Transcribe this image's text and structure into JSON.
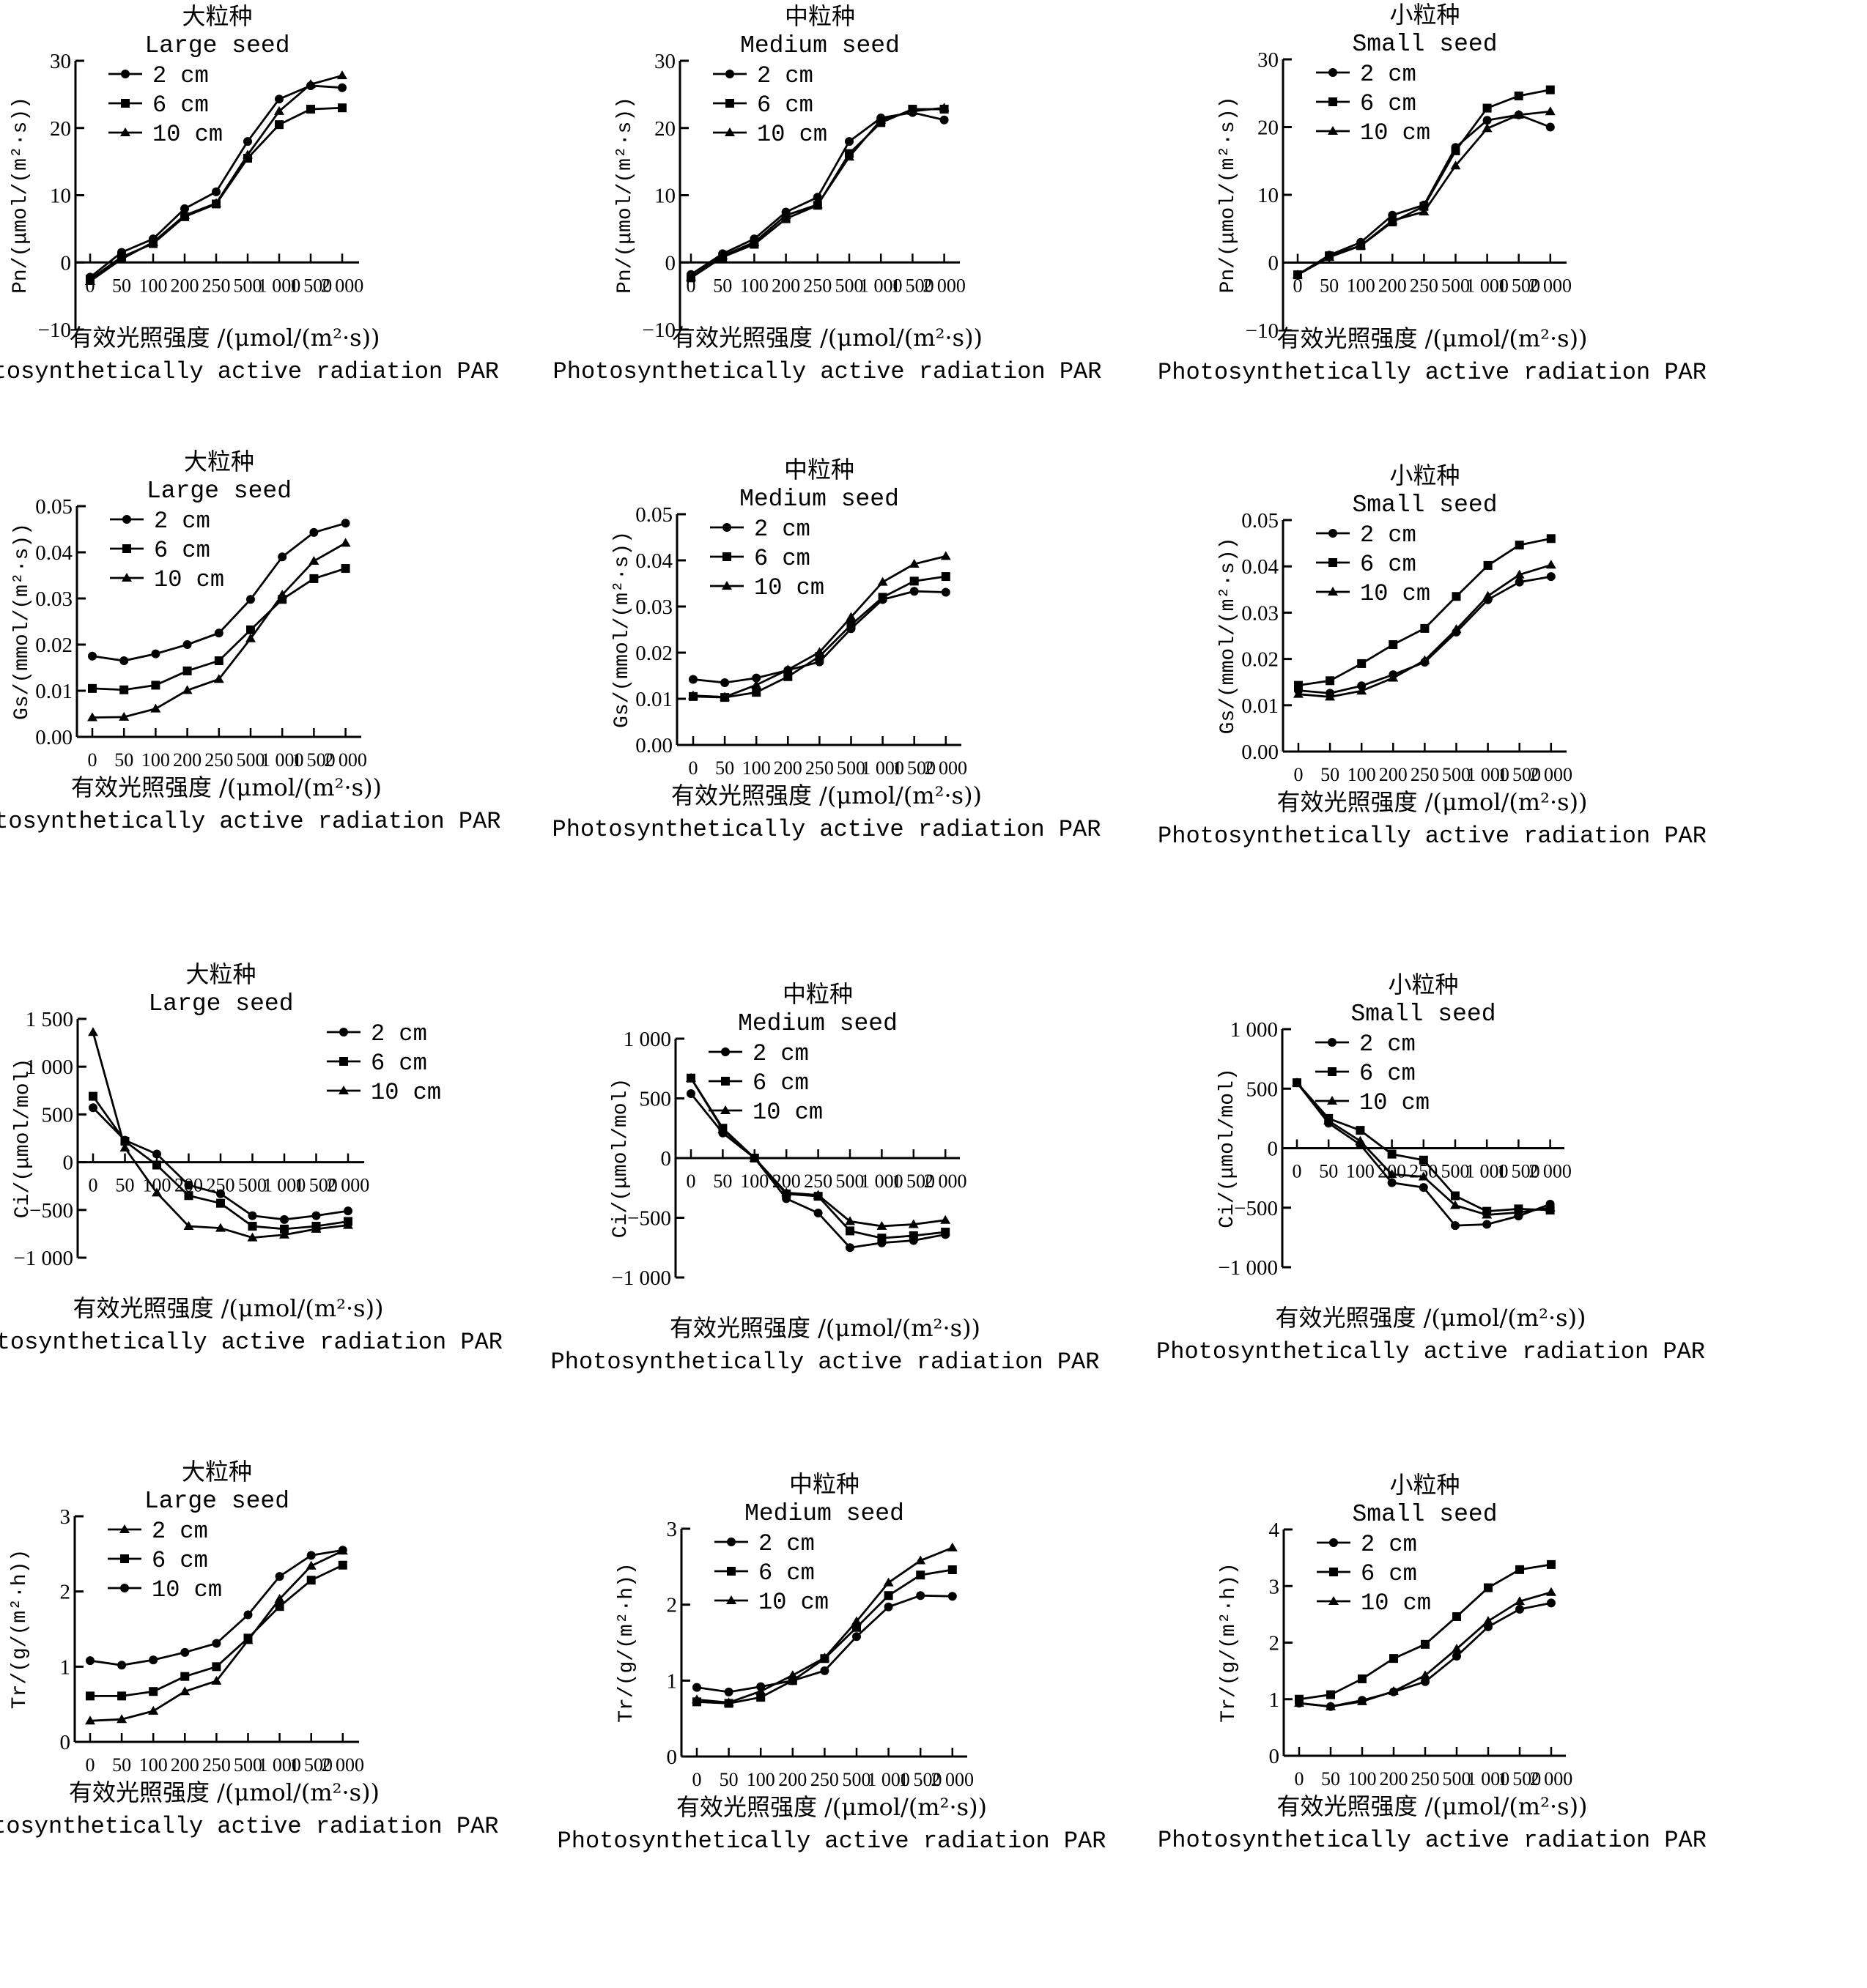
{
  "chart_data": [
    {
      "type": "line",
      "id": "pn-large",
      "title_cn": "大粒种",
      "title": "Large seed",
      "ylabel": "Pn/(μmol/(m²·s))",
      "xlabel_cn": "有效光照强度 /(μmol/(m²·s))",
      "xlabel": "Photosynthetically active radiation PAR",
      "categories": [
        "0",
        "50",
        "100",
        "200",
        "250",
        "500",
        "1 000",
        "1 500",
        "2 000"
      ],
      "ylim": [
        -10,
        30
      ],
      "yticks": [
        -10,
        0,
        10,
        20,
        30
      ],
      "ytick_labels": [
        "−10",
        "0",
        "10",
        "20",
        "30"
      ],
      "x_axis_at": 0,
      "legend": "top-left",
      "grid": false,
      "series": [
        {
          "name": "2 cm",
          "marker": "circle",
          "values": [
            -2.2,
            1.5,
            3.5,
            8.0,
            10.5,
            18.0,
            24.3,
            26.3,
            26.0
          ]
        },
        {
          "name": "6 cm",
          "marker": "square",
          "values": [
            -2.5,
            0.8,
            2.8,
            6.8,
            8.7,
            15.5,
            20.5,
            22.8,
            23.0
          ]
        },
        {
          "name": "10 cm",
          "marker": "triangle",
          "values": [
            -2.8,
            0.5,
            3.0,
            7.0,
            8.8,
            16.0,
            22.5,
            26.5,
            27.8
          ]
        }
      ]
    },
    {
      "type": "line",
      "id": "pn-medium",
      "title_cn": "中粒种",
      "title": "Medium seed",
      "ylabel": "Pn/(μmol/(m²·s))",
      "xlabel_cn": "有效光照强度 /(μmol/(m²·s))",
      "xlabel": "Photosynthetically active radiation PAR",
      "categories": [
        "0",
        "50",
        "100",
        "200",
        "250",
        "500",
        "1 000",
        "1 500",
        "2 000"
      ],
      "ylim": [
        -10,
        30
      ],
      "yticks": [
        -10,
        0,
        10,
        20,
        30
      ],
      "ytick_labels": [
        "−10",
        "0",
        "10",
        "20",
        "30"
      ],
      "x_axis_at": 0,
      "legend": "top-left",
      "grid": false,
      "series": [
        {
          "name": "2 cm",
          "marker": "circle",
          "values": [
            -1.8,
            1.3,
            3.5,
            7.5,
            9.7,
            18.0,
            21.5,
            22.3,
            21.2
          ]
        },
        {
          "name": "6 cm",
          "marker": "square",
          "values": [
            -2.3,
            0.8,
            2.7,
            6.5,
            8.5,
            16.2,
            20.8,
            22.8,
            22.8
          ]
        },
        {
          "name": "10 cm",
          "marker": "triangle",
          "values": [
            -2.2,
            1.0,
            3.0,
            7.0,
            8.6,
            15.7,
            21.2,
            22.5,
            23.0
          ]
        }
      ]
    },
    {
      "type": "line",
      "id": "pn-small",
      "title_cn": "小粒种",
      "title": "Small seed",
      "ylabel": "Pn/(μmol/(m²·s))",
      "xlabel_cn": "有效光照强度 /(μmol/(m²·s))",
      "xlabel": "Photosynthetically active radiation PAR",
      "categories": [
        "0",
        "50",
        "100",
        "200",
        "250",
        "500",
        "1 000",
        "1 500",
        "2 000"
      ],
      "ylim": [
        -10,
        30
      ],
      "yticks": [
        -10,
        0,
        10,
        20,
        30
      ],
      "ytick_labels": [
        "−10",
        "0",
        "10",
        "20",
        "30"
      ],
      "x_axis_at": 0,
      "legend": "top-left",
      "grid": false,
      "series": [
        {
          "name": "2 cm",
          "marker": "circle",
          "values": [
            -1.8,
            1.1,
            3.0,
            7.0,
            8.5,
            17.0,
            21.0,
            21.8,
            20.0
          ]
        },
        {
          "name": "6 cm",
          "marker": "square",
          "values": [
            -1.8,
            1.0,
            2.5,
            6.0,
            8.3,
            16.5,
            22.8,
            24.6,
            25.5
          ]
        },
        {
          "name": "10 cm",
          "marker": "triangle",
          "values": [
            -1.8,
            0.8,
            2.5,
            6.2,
            7.5,
            14.3,
            19.8,
            21.8,
            22.3
          ]
        }
      ]
    },
    {
      "type": "line",
      "id": "gs-large",
      "title_cn": "大粒种",
      "title": "Large seed",
      "ylabel": "Gs/(mmol/(m²·s))",
      "xlabel_cn": "有效光照强度 /(μmol/(m²·s))",
      "xlabel": "Photosynthetically active radiation PAR",
      "categories": [
        "0",
        "50",
        "100",
        "200",
        "250",
        "500",
        "1 000",
        "1 500",
        "2 000"
      ],
      "ylim": [
        0,
        0.05
      ],
      "yticks": [
        0,
        0.01,
        0.02,
        0.03,
        0.04,
        0.05
      ],
      "ytick_labels": [
        "0.00",
        "0.01",
        "0.02",
        "0.03",
        "0.04",
        "0.05"
      ],
      "x_axis_at": 0,
      "legend": "top-left",
      "grid": false,
      "series": [
        {
          "name": "2 cm",
          "marker": "circle",
          "values": [
            0.0175,
            0.0165,
            0.018,
            0.02,
            0.0225,
            0.0298,
            0.039,
            0.0443,
            0.0463
          ]
        },
        {
          "name": "6 cm",
          "marker": "square",
          "values": [
            0.0105,
            0.0102,
            0.0112,
            0.0143,
            0.0165,
            0.0232,
            0.0298,
            0.0343,
            0.0365
          ]
        },
        {
          "name": "10 cm",
          "marker": "triangle",
          "values": [
            0.0042,
            0.0043,
            0.0061,
            0.0101,
            0.0125,
            0.0213,
            0.0308,
            0.0381,
            0.042
          ]
        }
      ]
    },
    {
      "type": "line",
      "id": "gs-medium",
      "title_cn": "中粒种",
      "title": "Medium seed",
      "ylabel": "Gs/(mmol/(m²·s))",
      "xlabel_cn": "有效光照强度 /(μmol/(m²·s))",
      "xlabel": "Photosynthetically active radiation PAR",
      "categories": [
        "0",
        "50",
        "100",
        "200",
        "250",
        "500",
        "1 000",
        "1 500",
        "2 000"
      ],
      "ylim": [
        0,
        0.05
      ],
      "yticks": [
        0,
        0.01,
        0.02,
        0.03,
        0.04,
        0.05
      ],
      "ytick_labels": [
        "0.00",
        "0.01",
        "0.02",
        "0.03",
        "0.04",
        "0.05"
      ],
      "x_axis_at": 0,
      "legend": "top-left",
      "grid": false,
      "series": [
        {
          "name": "2 cm",
          "marker": "circle",
          "values": [
            0.0142,
            0.0135,
            0.0145,
            0.0162,
            0.018,
            0.0252,
            0.0315,
            0.0333,
            0.0331
          ]
        },
        {
          "name": "6 cm",
          "marker": "square",
          "values": [
            0.0105,
            0.0103,
            0.0114,
            0.0148,
            0.0192,
            0.026,
            0.032,
            0.0355,
            0.0365
          ]
        },
        {
          "name": "10 cm",
          "marker": "triangle",
          "values": [
            0.0107,
            0.0104,
            0.013,
            0.0163,
            0.0201,
            0.0277,
            0.0353,
            0.0392,
            0.0409
          ]
        }
      ]
    },
    {
      "type": "line",
      "id": "gs-small",
      "title_cn": "小粒种",
      "title": "Small seed",
      "ylabel": "Gs/(mmol/(m²·s))",
      "xlabel_cn": "有效光照强度 /(μmol/(m²·s))",
      "xlabel": "Photosynthetically active radiation PAR",
      "categories": [
        "0",
        "50",
        "100",
        "200",
        "250",
        "500",
        "1 000",
        "1 500",
        "2 000"
      ],
      "ylim": [
        0,
        0.05
      ],
      "yticks": [
        0,
        0.01,
        0.02,
        0.03,
        0.04,
        0.05
      ],
      "ytick_labels": [
        "0.00",
        "0.01",
        "0.02",
        "0.03",
        "0.04",
        "0.05"
      ],
      "x_axis_at": 0,
      "legend": "top-left",
      "grid": false,
      "series": [
        {
          "name": "2 cm",
          "marker": "circle",
          "values": [
            0.0132,
            0.0126,
            0.0142,
            0.0166,
            0.0193,
            0.0258,
            0.0328,
            0.0366,
            0.0378
          ]
        },
        {
          "name": "6 cm",
          "marker": "square",
          "values": [
            0.0143,
            0.0153,
            0.019,
            0.0231,
            0.0266,
            0.0335,
            0.0402,
            0.0446,
            0.046
          ]
        },
        {
          "name": "10 cm",
          "marker": "triangle",
          "values": [
            0.0124,
            0.0118,
            0.0131,
            0.0159,
            0.0197,
            0.0264,
            0.0336,
            0.0382,
            0.0403
          ]
        }
      ]
    },
    {
      "type": "line",
      "id": "ci-large",
      "title_cn": "大粒种",
      "title": "Large seed",
      "ylabel": "Ci/(μmol/mol)",
      "xlabel_cn": "有效光照强度 /(μmol/(m²·s))",
      "xlabel": "Photosynthetically active radiation PAR",
      "categories": [
        "0",
        "50",
        "100",
        "200",
        "250",
        "500",
        "1 000",
        "1 500",
        "2 000"
      ],
      "ylim": [
        -1000,
        1500
      ],
      "yticks": [
        -1000,
        -500,
        0,
        500,
        1000,
        1500
      ],
      "ytick_labels": [
        "−1 000",
        "−500",
        "0",
        "500",
        "1 000",
        "1 500"
      ],
      "x_axis_at": 0,
      "legend": "top-right",
      "grid": false,
      "series": [
        {
          "name": "2 cm",
          "marker": "circle",
          "values": [
            570,
            230,
            85,
            -240,
            -330,
            -560,
            -600,
            -560,
            -510
          ]
        },
        {
          "name": "6 cm",
          "marker": "square",
          "values": [
            690,
            220,
            -30,
            -350,
            -430,
            -670,
            -700,
            -670,
            -620
          ]
        },
        {
          "name": "10 cm",
          "marker": "triangle",
          "values": [
            1360,
            150,
            -320,
            -670,
            -690,
            -790,
            -760,
            -700,
            -660
          ]
        }
      ]
    },
    {
      "type": "line",
      "id": "ci-medium",
      "title_cn": "中粒种",
      "title": "Medium seed",
      "ylabel": "Ci/(μmol/mol)",
      "xlabel_cn": "有效光照强度 /(μmol/(m²·s))",
      "xlabel": "Photosynthetically active radiation PAR",
      "categories": [
        "0",
        "50",
        "100",
        "200",
        "250",
        "500",
        "1 000",
        "1 500",
        "2 000"
      ],
      "ylim": [
        -1000,
        1000
      ],
      "yticks": [
        -1000,
        -500,
        0,
        500,
        1000
      ],
      "ytick_labels": [
        "−1 000",
        "−500",
        "0",
        "500",
        "1 000"
      ],
      "x_axis_at": 0,
      "legend": "top-left",
      "grid": false,
      "series": [
        {
          "name": "2 cm",
          "marker": "circle",
          "values": [
            540,
            210,
            0,
            -340,
            -460,
            -750,
            -710,
            -690,
            -640
          ]
        },
        {
          "name": "6 cm",
          "marker": "square",
          "values": [
            670,
            250,
            0,
            -300,
            -320,
            -610,
            -670,
            -650,
            -620
          ]
        },
        {
          "name": "10 cm",
          "marker": "triangle",
          "values": [
            670,
            240,
            0,
            -290,
            -310,
            -530,
            -570,
            -555,
            -520
          ]
        }
      ]
    },
    {
      "type": "line",
      "id": "ci-small",
      "title_cn": "小粒种",
      "title": "Small seed",
      "ylabel": "Ci/(μmol/mol)",
      "xlabel_cn": "有效光照强度 /(μmol/(m²·s))",
      "xlabel": "Photosynthetically active radiation PAR",
      "categories": [
        "0",
        "50",
        "100",
        "200",
        "250",
        "500",
        "1 000",
        "1 500",
        "2 000"
      ],
      "ylim": [
        -1000,
        1000
      ],
      "yticks": [
        -1000,
        -500,
        0,
        500,
        1000
      ],
      "ytick_labels": [
        "−1 000",
        "−500",
        "0",
        "500",
        "1 000"
      ],
      "x_axis_at": 0,
      "legend": "top-left",
      "grid": false,
      "series": [
        {
          "name": "2 cm",
          "marker": "circle",
          "values": [
            550,
            210,
            30,
            -290,
            -330,
            -650,
            -640,
            -570,
            -470
          ]
        },
        {
          "name": "6 cm",
          "marker": "square",
          "values": [
            550,
            250,
            150,
            -50,
            -100,
            -400,
            -530,
            -510,
            -520
          ]
        },
        {
          "name": "10 cm",
          "marker": "triangle",
          "values": [
            550,
            230,
            60,
            -220,
            -240,
            -480,
            -560,
            -540,
            -500
          ]
        }
      ]
    },
    {
      "type": "line",
      "id": "tr-large",
      "title_cn": "大粒种",
      "title": "Large seed",
      "ylabel": "Tr/(g/(m²·h))",
      "xlabel_cn": "有效光照强度 /(μmol/(m²·s))",
      "xlabel": "Photosynthetically active radiation PAR",
      "categories": [
        "0",
        "50",
        "100",
        "200",
        "250",
        "500",
        "1 000",
        "1 500",
        "2 000"
      ],
      "ylim": [
        0,
        3
      ],
      "yticks": [
        0,
        1,
        2,
        3
      ],
      "ytick_labels": [
        "0",
        "1",
        "2",
        "3"
      ],
      "x_axis_at": 0,
      "legend": "top-left",
      "grid": false,
      "series": [
        {
          "name": "2 cm",
          "marker": "triangle",
          "values": [
            0.28,
            0.3,
            0.41,
            0.67,
            0.81,
            1.35,
            1.9,
            2.34,
            2.54
          ]
        },
        {
          "name": "6 cm",
          "marker": "square",
          "values": [
            0.61,
            0.61,
            0.67,
            0.87,
            1.0,
            1.38,
            1.8,
            2.15,
            2.35
          ]
        },
        {
          "name": "10 cm",
          "marker": "circle",
          "values": [
            1.08,
            1.02,
            1.09,
            1.19,
            1.31,
            1.69,
            2.2,
            2.48,
            2.55
          ]
        }
      ]
    },
    {
      "type": "line",
      "id": "tr-medium",
      "title_cn": "中粒种",
      "title": "Medium seed",
      "ylabel": "Tr/(g/(m²·h))",
      "xlabel_cn": "有效光照强度 /(μmol/(m²·s))",
      "xlabel": "Photosynthetically active radiation PAR",
      "categories": [
        "0",
        "50",
        "100",
        "200",
        "250",
        "500",
        "1 000",
        "1 500",
        "2 000"
      ],
      "ylim": [
        0,
        3
      ],
      "yticks": [
        0,
        1,
        2,
        3
      ],
      "ytick_labels": [
        "0",
        "1",
        "2",
        "3"
      ],
      "x_axis_at": 0,
      "legend": "top-left",
      "grid": false,
      "series": [
        {
          "name": "2 cm",
          "marker": "circle",
          "values": [
            0.91,
            0.85,
            0.92,
            1.0,
            1.13,
            1.58,
            1.97,
            2.12,
            2.11
          ]
        },
        {
          "name": "6 cm",
          "marker": "square",
          "values": [
            0.72,
            0.7,
            0.78,
            1.0,
            1.29,
            1.7,
            2.12,
            2.39,
            2.46
          ]
        },
        {
          "name": "10 cm",
          "marker": "triangle",
          "values": [
            0.75,
            0.71,
            0.86,
            1.07,
            1.3,
            1.78,
            2.29,
            2.58,
            2.75
          ]
        }
      ]
    },
    {
      "type": "line",
      "id": "tr-small",
      "title_cn": "小粒种",
      "title": "Small seed",
      "ylabel": "Tr/(g/(m²·h))",
      "xlabel_cn": "有效光照强度 /(μmol/(m²·s))",
      "xlabel": "Photosynthetically active radiation PAR",
      "categories": [
        "0",
        "50",
        "100",
        "200",
        "250",
        "500",
        "1 000",
        "1 500",
        "2 000"
      ],
      "ylim": [
        0,
        4
      ],
      "yticks": [
        0,
        1,
        2,
        3,
        4
      ],
      "ytick_labels": [
        "0",
        "1",
        "2",
        "3",
        "4"
      ],
      "x_axis_at": 0,
      "legend": "top-left",
      "grid": false,
      "series": [
        {
          "name": "2 cm",
          "marker": "circle",
          "values": [
            0.93,
            0.87,
            0.98,
            1.13,
            1.31,
            1.76,
            2.28,
            2.59,
            2.7
          ]
        },
        {
          "name": "6 cm",
          "marker": "square",
          "values": [
            1.0,
            1.08,
            1.36,
            1.72,
            1.97,
            2.46,
            2.97,
            3.29,
            3.38
          ]
        },
        {
          "name": "10 cm",
          "marker": "triangle",
          "values": [
            0.93,
            0.87,
            0.96,
            1.14,
            1.42,
            1.89,
            2.38,
            2.73,
            2.89
          ]
        }
      ]
    }
  ],
  "colors": {
    "line": "#000000",
    "background": "#ffffff"
  }
}
